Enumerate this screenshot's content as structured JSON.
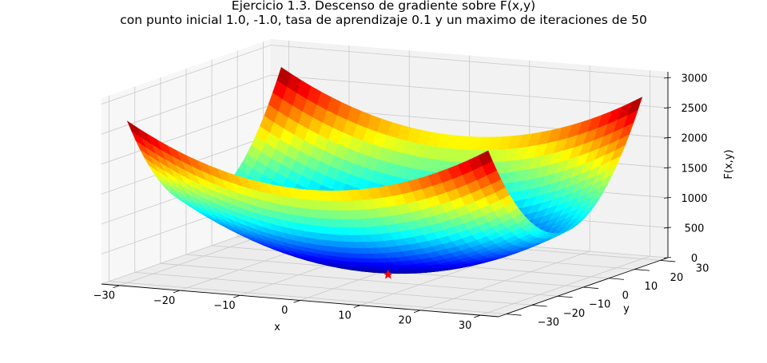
{
  "chart_data": {
    "type": "surface3d",
    "title": "Ejercicio 1.3. Descenso de gradiente sobre F(x,y)",
    "subtitle": "con punto inicial 1.0, -1.0, tasa de aprendizaje 0.1 y un maximo de iteraciones de 50",
    "xlabel": "x",
    "ylabel": "y",
    "zlabel": "F(x,y)",
    "xlim": [
      -33,
      33
    ],
    "ylim": [
      -33,
      33
    ],
    "zlim": [
      0,
      3100
    ],
    "x_ticks": [
      -30,
      -20,
      -10,
      0,
      10,
      20,
      30
    ],
    "y_ticks": [
      -30,
      -20,
      -10,
      0,
      10,
      20,
      30
    ],
    "z_ticks": [
      0,
      500,
      1000,
      1500,
      2000,
      2500,
      3000
    ],
    "surface_range": [
      -30,
      30
    ],
    "colormap": "jet",
    "grid": true,
    "minimum_marker": {
      "x": 1,
      "y": -1,
      "z": 0,
      "marker": "star",
      "color": "#ff0000"
    }
  }
}
